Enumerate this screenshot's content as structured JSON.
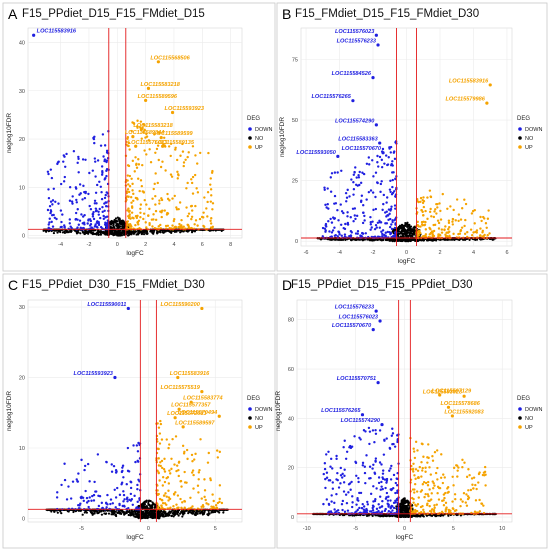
{
  "colors": {
    "DOWN": "#1f1fe0",
    "NO": "#000000",
    "UP": "#f5a300",
    "threshold": "#e31a1c",
    "grid": "#ebebeb"
  },
  "legend": {
    "title": "DEG",
    "labels": [
      "DOWN",
      "NO",
      "UP"
    ]
  },
  "chart_data": [
    {
      "type": "scatter",
      "panel_letter": "A",
      "title": "F15_PPdiet_D15_F15_FMdiet_D15",
      "xlabel": "logFC",
      "ylabel": "neglog10FDR",
      "xlim": [
        -6.3,
        8.8
      ],
      "ylim": [
        -0.5,
        43
      ],
      "xticks": [
        -4,
        -2,
        0,
        2,
        4,
        6,
        8
      ],
      "yticks": [
        0,
        10,
        20,
        30,
        40
      ],
      "fc_threshold": [
        -0.6,
        0.6
      ],
      "fdr_threshold": 1.3,
      "grid": true,
      "legend_position": "right",
      "seed": 11,
      "up_count": 320,
      "down_count": 230,
      "up_peak": 25,
      "down_peak": 22,
      "labeled_points": [
        {
          "gene": "LOC115583916",
          "x": -5.9,
          "y": 41.5,
          "deg": "DOWN"
        },
        {
          "gene": "LOC115568506",
          "x": 2.9,
          "y": 36.0,
          "deg": "UP"
        },
        {
          "gene": "LOC115583218",
          "x": 2.2,
          "y": 30.5,
          "deg": "UP"
        },
        {
          "gene": "LOC115589596",
          "x": 2.0,
          "y": 28.0,
          "deg": "UP"
        },
        {
          "gene": "LOC115593923",
          "x": 3.9,
          "y": 25.5,
          "deg": "UP"
        },
        {
          "gene": "LOC115583218",
          "x": 1.7,
          "y": 22.0,
          "deg": "UP"
        },
        {
          "gene": "LOC115589844",
          "x": 1.1,
          "y": 20.5,
          "deg": "UP"
        },
        {
          "gene": "LOC115589599",
          "x": 3.1,
          "y": 20.3,
          "deg": "UP"
        },
        {
          "gene": "LOC115576013",
          "x": 1.3,
          "y": 18.5,
          "deg": "UP"
        },
        {
          "gene": "LOC115589135",
          "x": 3.2,
          "y": 18.5,
          "deg": "UP"
        }
      ]
    },
    {
      "type": "scatter",
      "panel_letter": "B",
      "title": "F15_FMdiet_D15_F15_FMdiet_D30",
      "xlabel": "logFC",
      "ylabel": "neglog10FDR",
      "xlim": [
        -6.3,
        6.3
      ],
      "ylim": [
        -2,
        88
      ],
      "xticks": [
        -6,
        -4,
        -2,
        0,
        2,
        4,
        6
      ],
      "yticks": [
        0,
        25,
        50,
        75
      ],
      "fc_threshold": [
        -0.6,
        0.6
      ],
      "fdr_threshold": 1.3,
      "grid": true,
      "legend_position": "right",
      "seed": 23,
      "up_count": 200,
      "down_count": 290,
      "up_peak": 22,
      "down_peak": 42,
      "labeled_points": [
        {
          "gene": "LOC115576023",
          "x": -1.8,
          "y": 85.0,
          "deg": "DOWN"
        },
        {
          "gene": "LOC115576233",
          "x": -1.7,
          "y": 81.0,
          "deg": "DOWN"
        },
        {
          "gene": "LOC115584526",
          "x": -2.0,
          "y": 67.5,
          "deg": "DOWN"
        },
        {
          "gene": "LOC115576265",
          "x": -3.2,
          "y": 58.0,
          "deg": "DOWN"
        },
        {
          "gene": "LOC115583916",
          "x": 5.0,
          "y": 64.5,
          "deg": "UP"
        },
        {
          "gene": "LOC115579986",
          "x": 4.8,
          "y": 57.0,
          "deg": "UP"
        },
        {
          "gene": "LOC115574290",
          "x": -1.8,
          "y": 48.0,
          "deg": "DOWN"
        },
        {
          "gene": "LOC115583363",
          "x": -1.6,
          "y": 40.5,
          "deg": "DOWN"
        },
        {
          "gene": "LOC115570670",
          "x": -1.4,
          "y": 36.5,
          "deg": "DOWN"
        },
        {
          "gene": "LOC115593050",
          "x": -4.1,
          "y": 35.0,
          "deg": "DOWN"
        }
      ]
    },
    {
      "type": "scatter",
      "panel_letter": "C",
      "title": "F15_PPdiet_D30_F15_FMdiet_D30",
      "xlabel": "logFC",
      "ylabel": "neglog10FDR",
      "xlim": [
        -9,
        7
      ],
      "ylim": [
        -0.5,
        31
      ],
      "xticks": [
        -5,
        0,
        5
      ],
      "yticks": [
        0,
        10,
        20,
        30
      ],
      "fc_threshold": [
        -0.6,
        0.6
      ],
      "fdr_threshold": 1.3,
      "grid": true,
      "legend_position": "right",
      "seed": 37,
      "up_count": 180,
      "down_count": 150,
      "up_peak": 14,
      "down_peak": 10,
      "labeled_points": [
        {
          "gene": "LOC115590011",
          "x": -1.5,
          "y": 29.8,
          "deg": "DOWN"
        },
        {
          "gene": "LOC115590200",
          "x": 4.0,
          "y": 29.8,
          "deg": "UP"
        },
        {
          "gene": "LOC115593923",
          "x": -2.5,
          "y": 20.0,
          "deg": "DOWN"
        },
        {
          "gene": "LOC115583916",
          "x": 2.2,
          "y": 20.0,
          "deg": "UP"
        },
        {
          "gene": "LOC115575519",
          "x": 4.0,
          "y": 18.0,
          "deg": "UP"
        },
        {
          "gene": "LOC115583774",
          "x": 3.2,
          "y": 16.5,
          "deg": "UP"
        },
        {
          "gene": "LOC115577357",
          "x": 2.3,
          "y": 15.5,
          "deg": "UP"
        },
        {
          "gene": "LOC115570494",
          "x": 5.3,
          "y": 14.5,
          "deg": "UP"
        },
        {
          "gene": "LOC115572613",
          "x": 2.0,
          "y": 14.3,
          "deg": "UP"
        },
        {
          "gene": "LOC115589597",
          "x": 2.6,
          "y": 13.0,
          "deg": "UP"
        }
      ]
    },
    {
      "type": "scatter",
      "panel_letter": "D",
      "title": "F15_PPdiet_D15_F15_PPdiet_D30",
      "xlabel": "logFC",
      "ylabel": "neglog10FDR",
      "xlim": [
        -11,
        11
      ],
      "ylim": [
        -2,
        88
      ],
      "xticks": [
        -10,
        -5,
        0,
        5,
        10
      ],
      "yticks": [
        0,
        20,
        40,
        60,
        80
      ],
      "fc_threshold": [
        -0.6,
        0.6
      ],
      "fdr_threshold": 1.3,
      "grid": true,
      "legend_position": "right",
      "seed": 51,
      "up_count": 230,
      "down_count": 300,
      "up_peak": 32,
      "down_peak": 42,
      "labeled_points": [
        {
          "gene": "LOC115576233",
          "x": -2.9,
          "y": 83.5,
          "deg": "DOWN"
        },
        {
          "gene": "LOC115576023",
          "x": -2.5,
          "y": 79.5,
          "deg": "DOWN"
        },
        {
          "gene": "LOC115570670",
          "x": -3.2,
          "y": 76.0,
          "deg": "DOWN"
        },
        {
          "gene": "LOC115570751",
          "x": -2.7,
          "y": 54.5,
          "deg": "DOWN"
        },
        {
          "gene": "LOC115567129",
          "x": 3.6,
          "y": 49.5,
          "deg": "UP"
        },
        {
          "gene": "LOC115593923",
          "x": 6.1,
          "y": 49.0,
          "deg": "UP"
        },
        {
          "gene": "LOC115578686",
          "x": 4.5,
          "y": 44.5,
          "deg": "UP"
        },
        {
          "gene": "LOC115576265",
          "x": -4.3,
          "y": 41.5,
          "deg": "DOWN"
        },
        {
          "gene": "LOC115592083",
          "x": 4.9,
          "y": 41.0,
          "deg": "UP"
        },
        {
          "gene": "LOC115574290",
          "x": -2.3,
          "y": 37.5,
          "deg": "DOWN"
        }
      ]
    }
  ]
}
